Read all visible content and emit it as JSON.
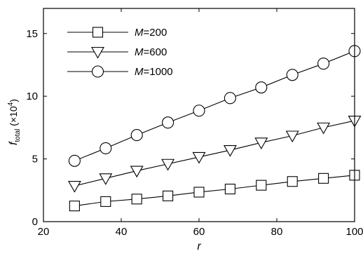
{
  "chart_data": {
    "type": "line",
    "x": [
      28,
      36,
      44,
      52,
      60,
      68,
      76,
      84,
      92,
      100
    ],
    "series": [
      {
        "name": "M=200",
        "name_var": "M",
        "name_value": "=200",
        "marker": "square",
        "values": [
          1.25,
          1.6,
          1.8,
          2.05,
          2.35,
          2.6,
          2.9,
          3.2,
          3.45,
          3.7
        ]
      },
      {
        "name": "M=600",
        "name_var": "M",
        "name_value": "=600",
        "marker": "triangle-down",
        "values": [
          2.85,
          3.45,
          4.05,
          4.6,
          5.15,
          5.7,
          6.3,
          6.85,
          7.5,
          8.05
        ]
      },
      {
        "name": "M=1000",
        "name_var": "M",
        "name_value": "=1000",
        "marker": "circle",
        "values": [
          4.85,
          5.85,
          6.9,
          7.9,
          8.85,
          9.85,
          10.7,
          11.7,
          12.6,
          13.6
        ]
      }
    ],
    "xlabel": "r",
    "ylabel_main": "f",
    "ylabel_sub": "total",
    "ylabel_unit_open": " (×10",
    "ylabel_unit_exp": "4",
    "ylabel_unit_close": ")",
    "xlim": [
      20,
      100
    ],
    "ylim": [
      0,
      17
    ],
    "xticks": [
      20,
      40,
      60,
      80,
      100
    ],
    "yticks": [
      0,
      5,
      10,
      15
    ],
    "grid": false,
    "legend_position": "top-left",
    "line_color": "#000000"
  }
}
